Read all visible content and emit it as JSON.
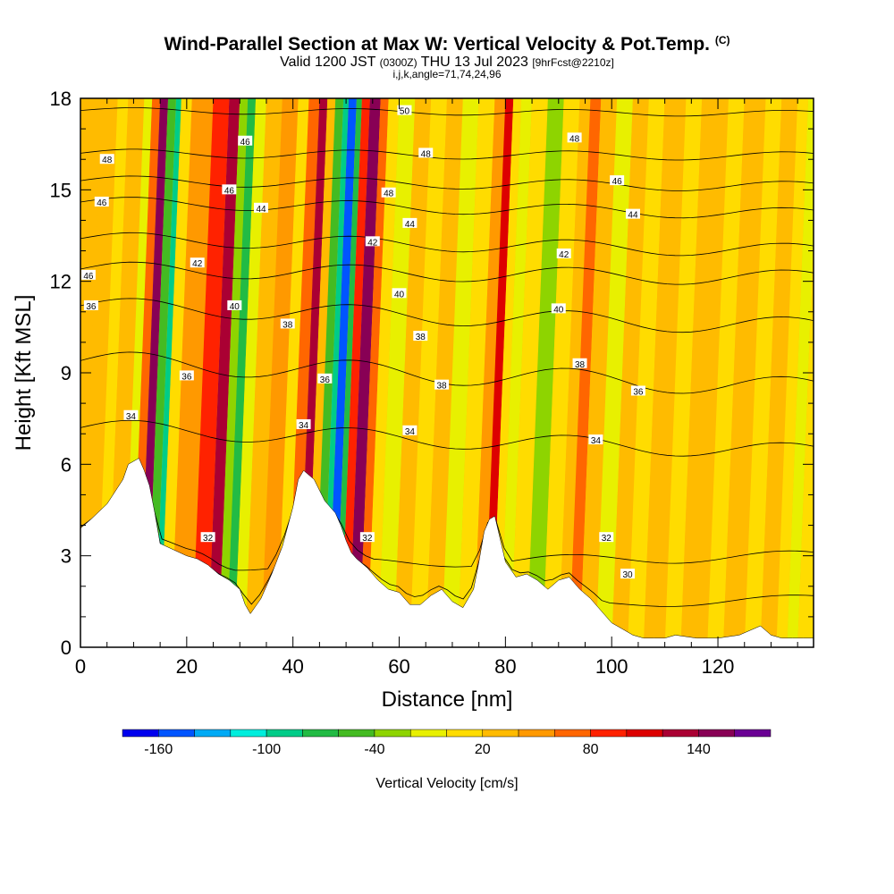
{
  "title": {
    "main": "Wind-Parallel Section at Max W: Vertical Velocity & Pot.Temp.",
    "main_unit": "(C)",
    "valid_prefix": "Valid 1200 JST",
    "valid_utc": "(0300Z)",
    "valid_date": "THU 13 Jul 2023",
    "forecast": "[9hrFcst@2210z]",
    "indices": "i,j,k,angle=71,74,24,96"
  },
  "chart_data": {
    "type": "heatmap",
    "xlabel": "Distance [nm]",
    "ylabel": "Height [Kft MSL]",
    "xlim": [
      0,
      138
    ],
    "ylim": [
      0,
      18
    ],
    "x_ticks": [
      0,
      20,
      40,
      60,
      80,
      100,
      120
    ],
    "y_ticks": [
      0,
      3,
      6,
      9,
      12,
      15,
      18
    ],
    "x_tick_labels": [
      "0",
      "20",
      "40",
      "60",
      "80",
      "100",
      "120"
    ],
    "y_tick_labels": [
      "0",
      "3",
      "6",
      "9",
      "12",
      "15",
      "18"
    ],
    "terrain": {
      "x": [
        0,
        2,
        5,
        8,
        9,
        11,
        12,
        13,
        14,
        15,
        20,
        22,
        24,
        26,
        28,
        30,
        31,
        32,
        34,
        36,
        38,
        40,
        41,
        42,
        44,
        46,
        48,
        49,
        50,
        51,
        52,
        54,
        56,
        58,
        60,
        62,
        64,
        66,
        68,
        70,
        72,
        74,
        75,
        76,
        77,
        78,
        80,
        82,
        84,
        86,
        88,
        90,
        92,
        94,
        96,
        98,
        100,
        102,
        104,
        106,
        108,
        110,
        112,
        116,
        120,
        124,
        128,
        130,
        132,
        134,
        136,
        138
      ],
      "y": [
        3.9,
        4.2,
        4.7,
        5.5,
        6.0,
        6.2,
        5.8,
        5.3,
        4.4,
        3.4,
        3.0,
        2.9,
        2.7,
        2.4,
        2.2,
        1.9,
        1.4,
        1.1,
        1.6,
        2.4,
        3.3,
        4.6,
        5.5,
        5.8,
        5.5,
        4.8,
        4.4,
        4.0,
        3.5,
        3.1,
        2.9,
        2.6,
        2.2,
        1.9,
        1.8,
        1.4,
        1.4,
        1.7,
        1.9,
        1.5,
        1.3,
        1.9,
        2.8,
        3.8,
        4.2,
        4.3,
        2.8,
        2.3,
        2.4,
        2.2,
        1.9,
        2.2,
        2.3,
        1.9,
        1.6,
        1.2,
        0.8,
        0.6,
        0.4,
        0.3,
        0.3,
        0.3,
        0.4,
        0.3,
        0.3,
        0.4,
        0.7,
        0.4,
        0.3,
        0.3,
        0.3,
        0.3
      ]
    },
    "velocity_bands": [
      {
        "x0": 0,
        "x1": 3,
        "w": 20
      },
      {
        "x0": 3,
        "x1": 5,
        "w": 0
      },
      {
        "x0": 5,
        "x1": 8,
        "w": 20
      },
      {
        "x0": 8,
        "x1": 9.5,
        "w": -20
      },
      {
        "x0": 9.5,
        "x1": 11,
        "w": 60
      },
      {
        "x0": 11,
        "x1": 12.5,
        "w": 140
      },
      {
        "x0": 12.5,
        "x1": 14,
        "w": -60
      },
      {
        "x0": 14,
        "x1": 15,
        "w": -100
      },
      {
        "x0": 15,
        "x1": 17,
        "w": 0
      },
      {
        "x0": 17,
        "x1": 21,
        "w": 40
      },
      {
        "x0": 21,
        "x1": 24,
        "w": 80
      },
      {
        "x0": 24,
        "x1": 26,
        "w": 120
      },
      {
        "x0": 26,
        "x1": 27.5,
        "w": -40
      },
      {
        "x0": 27.5,
        "x1": 29,
        "w": -80
      },
      {
        "x0": 29,
        "x1": 31,
        "w": -20
      },
      {
        "x0": 31,
        "x1": 34,
        "w": 20
      },
      {
        "x0": 34,
        "x1": 37,
        "w": 40
      },
      {
        "x0": 37,
        "x1": 39,
        "w": 0
      },
      {
        "x0": 39,
        "x1": 41,
        "w": 60
      },
      {
        "x0": 41,
        "x1": 42.5,
        "w": 120
      },
      {
        "x0": 42.5,
        "x1": 44,
        "w": 20
      },
      {
        "x0": 44,
        "x1": 45.5,
        "w": -60
      },
      {
        "x0": 45.5,
        "x1": 46.5,
        "w": -100
      },
      {
        "x0": 46.5,
        "x1": 48,
        "w": -160
      },
      {
        "x0": 48,
        "x1": 49,
        "w": -80
      },
      {
        "x0": 49,
        "x1": 50.5,
        "w": 80
      },
      {
        "x0": 50.5,
        "x1": 52.5,
        "w": 140
      },
      {
        "x0": 52.5,
        "x1": 54,
        "w": 60
      },
      {
        "x0": 54,
        "x1": 56,
        "w": 0
      },
      {
        "x0": 56,
        "x1": 59,
        "w": -20
      },
      {
        "x0": 59,
        "x1": 62,
        "w": 20
      },
      {
        "x0": 62,
        "x1": 65,
        "w": 0
      },
      {
        "x0": 65,
        "x1": 68,
        "w": 20
      },
      {
        "x0": 68,
        "x1": 71,
        "w": -20
      },
      {
        "x0": 71,
        "x1": 74,
        "w": 0
      },
      {
        "x0": 74,
        "x1": 76,
        "w": 40
      },
      {
        "x0": 76,
        "x1": 77.5,
        "w": 100
      },
      {
        "x0": 77.5,
        "x1": 79,
        "w": 0
      },
      {
        "x0": 79,
        "x1": 81,
        "w": -20
      },
      {
        "x0": 81,
        "x1": 84,
        "w": 0
      },
      {
        "x0": 84,
        "x1": 87,
        "w": -40
      },
      {
        "x0": 87,
        "x1": 90,
        "w": 0
      },
      {
        "x0": 90,
        "x1": 92,
        "w": 20
      },
      {
        "x0": 92,
        "x1": 94,
        "w": 60
      },
      {
        "x0": 94,
        "x1": 97,
        "w": 20
      },
      {
        "x0": 97,
        "x1": 100,
        "w": -20
      },
      {
        "x0": 100,
        "x1": 103,
        "w": 20
      },
      {
        "x0": 103,
        "x1": 106,
        "w": 0
      },
      {
        "x0": 106,
        "x1": 110,
        "w": 20
      },
      {
        "x0": 110,
        "x1": 113,
        "w": 0
      },
      {
        "x0": 113,
        "x1": 118,
        "w": 20
      },
      {
        "x0": 118,
        "x1": 121,
        "w": 0
      },
      {
        "x0": 121,
        "x1": 125,
        "w": 20
      },
      {
        "x0": 125,
        "x1": 128,
        "w": 0
      },
      {
        "x0": 128,
        "x1": 131,
        "w": 20
      },
      {
        "x0": 131,
        "x1": 133,
        "w": 0
      },
      {
        "x0": 133,
        "x1": 135,
        "w": -20
      },
      {
        "x0": 135,
        "x1": 138,
        "w": 0
      }
    ],
    "theta_contours": [
      {
        "value": 30,
        "y0": 0.9,
        "y1": 1.6
      },
      {
        "value": 32,
        "y0": 2.6,
        "y1": 3.0
      },
      {
        "value": 34,
        "y0": 7.2,
        "y1": 6.4
      },
      {
        "value": 36,
        "y0": 9.4,
        "y1": 8.5
      },
      {
        "value": 38,
        "y0": 11.2,
        "y1": 10.5
      },
      {
        "value": 40,
        "y0": 12.4,
        "y1": 12.1
      },
      {
        "value": 42,
        "y0": 13.4,
        "y1": 13.0
      },
      {
        "value": 44,
        "y0": 14.6,
        "y1": 14.2
      },
      {
        "value": 46,
        "y0": 15.3,
        "y1": 15.1
      },
      {
        "value": 48,
        "y0": 16.2,
        "y1": 16.1
      },
      {
        "value": 50,
        "y0": 17.6,
        "y1": 17.5
      }
    ],
    "contour_labels": [
      {
        "text": "48",
        "x": 5,
        "y": 16.0
      },
      {
        "text": "46",
        "x": 4,
        "y": 14.6
      },
      {
        "text": "46",
        "x": 1.5,
        "y": 12.2
      },
      {
        "text": "36",
        "x": 2,
        "y": 11.2
      },
      {
        "text": "34",
        "x": 9.5,
        "y": 7.6
      },
      {
        "text": "46",
        "x": 31,
        "y": 16.6
      },
      {
        "text": "46",
        "x": 28,
        "y": 15.0
      },
      {
        "text": "44",
        "x": 34,
        "y": 14.4
      },
      {
        "text": "42",
        "x": 22,
        "y": 12.6
      },
      {
        "text": "40",
        "x": 29,
        "y": 11.2
      },
      {
        "text": "38",
        "x": 39,
        "y": 10.6
      },
      {
        "text": "36",
        "x": 20,
        "y": 8.9
      },
      {
        "text": "34",
        "x": 42,
        "y": 7.3
      },
      {
        "text": "32",
        "x": 24,
        "y": 3.6
      },
      {
        "text": "36",
        "x": 46,
        "y": 8.8
      },
      {
        "text": "50",
        "x": 61,
        "y": 17.6
      },
      {
        "text": "48",
        "x": 65,
        "y": 16.2
      },
      {
        "text": "48",
        "x": 58,
        "y": 14.9
      },
      {
        "text": "44",
        "x": 62,
        "y": 13.9
      },
      {
        "text": "42",
        "x": 55,
        "y": 13.3
      },
      {
        "text": "40",
        "x": 60,
        "y": 11.6
      },
      {
        "text": "38",
        "x": 64,
        "y": 10.2
      },
      {
        "text": "38",
        "x": 68,
        "y": 8.6
      },
      {
        "text": "34",
        "x": 62,
        "y": 7.1
      },
      {
        "text": "32",
        "x": 54,
        "y": 3.6
      },
      {
        "text": "48",
        "x": 93,
        "y": 16.7
      },
      {
        "text": "46",
        "x": 101,
        "y": 15.3
      },
      {
        "text": "44",
        "x": 104,
        "y": 14.2
      },
      {
        "text": "42",
        "x": 91,
        "y": 12.9
      },
      {
        "text": "40",
        "x": 90,
        "y": 11.1
      },
      {
        "text": "38",
        "x": 94,
        "y": 9.3
      },
      {
        "text": "36",
        "x": 105,
        "y": 8.4
      },
      {
        "text": "34",
        "x": 97,
        "y": 6.8
      },
      {
        "text": "32",
        "x": 99,
        "y": 3.6
      },
      {
        "text": "30",
        "x": 103,
        "y": 2.4
      }
    ],
    "colorbar": {
      "label": "Vertical Velocity [cm/s]",
      "tick_labels": [
        "-160",
        "-100",
        "-40",
        "20",
        "80",
        "140"
      ],
      "colors": [
        "#0000ee",
        "#0055ff",
        "#00aaf5",
        "#00eedd",
        "#00cc88",
        "#22bb44",
        "#44bb22",
        "#8ed400",
        "#e8f000",
        "#ffdc00",
        "#ffbb00",
        "#ff9900",
        "#ff6600",
        "#ff2200",
        "#dd0000",
        "#aa0033",
        "#880055",
        "#6a0094"
      ]
    }
  }
}
